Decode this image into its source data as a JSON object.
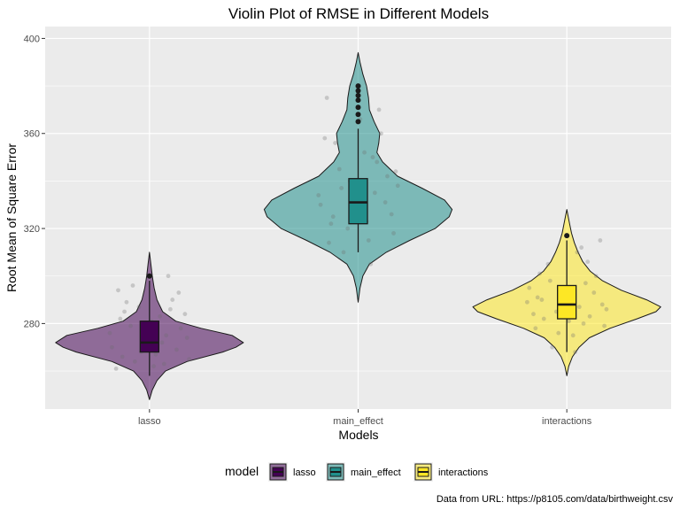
{
  "chart_data": {
    "type": "violin",
    "title": "Violin Plot of RMSE in Different Models",
    "xlabel": "Models",
    "ylabel": "Root Mean of Square Error",
    "categories": [
      "lasso",
      "main_effect",
      "interactions"
    ],
    "ylim": [
      244,
      405
    ],
    "yticks": [
      280,
      320,
      360,
      400
    ],
    "grid": true,
    "legend": {
      "title": "model",
      "position": "bottom"
    },
    "caption": "Data from URL: https://p8105.com/data/birthweight.csv",
    "series": [
      {
        "name": "lasso",
        "color": "#440154",
        "range": [
          248,
          310
        ],
        "box": {
          "min": 258,
          "q1": 268,
          "median": 272,
          "q3": 281,
          "max": 298
        },
        "outliers": [
          300
        ],
        "density": [
          [
            248,
            0.0
          ],
          [
            252,
            0.03
          ],
          [
            256,
            0.08
          ],
          [
            260,
            0.17
          ],
          [
            264,
            0.4
          ],
          [
            268,
            0.78
          ],
          [
            270,
            0.92
          ],
          [
            272,
            1.0
          ],
          [
            275,
            0.88
          ],
          [
            278,
            0.55
          ],
          [
            281,
            0.28
          ],
          [
            285,
            0.14
          ],
          [
            290,
            0.08
          ],
          [
            295,
            0.05
          ],
          [
            300,
            0.03
          ],
          [
            305,
            0.015
          ],
          [
            310,
            0.0
          ]
        ]
      },
      {
        "name": "main_effect",
        "color": "#21908C",
        "range": [
          289,
          394
        ],
        "box": {
          "min": 310,
          "q1": 322,
          "median": 331,
          "q3": 341,
          "max": 362
        },
        "outliers": [
          365,
          368,
          371,
          374,
          376,
          378,
          380
        ],
        "density": [
          [
            289,
            0.0
          ],
          [
            295,
            0.02
          ],
          [
            300,
            0.05
          ],
          [
            305,
            0.12
          ],
          [
            310,
            0.3
          ],
          [
            315,
            0.55
          ],
          [
            320,
            0.82
          ],
          [
            325,
            0.97
          ],
          [
            328,
            1.0
          ],
          [
            332,
            0.92
          ],
          [
            337,
            0.68
          ],
          [
            342,
            0.42
          ],
          [
            348,
            0.26
          ],
          [
            352,
            0.2
          ],
          [
            356,
            0.22
          ],
          [
            360,
            0.23
          ],
          [
            365,
            0.17
          ],
          [
            370,
            0.12
          ],
          [
            375,
            0.11
          ],
          [
            380,
            0.09
          ],
          [
            385,
            0.05
          ],
          [
            390,
            0.02
          ],
          [
            394,
            0.0
          ]
        ]
      },
      {
        "name": "interactions",
        "color": "#FDE725",
        "range": [
          258,
          328
        ],
        "box": {
          "min": 268,
          "q1": 282,
          "median": 288,
          "q3": 296,
          "max": 315
        },
        "outliers": [
          317
        ],
        "density": [
          [
            258,
            0.0
          ],
          [
            262,
            0.02
          ],
          [
            266,
            0.06
          ],
          [
            270,
            0.13
          ],
          [
            274,
            0.24
          ],
          [
            278,
            0.46
          ],
          [
            282,
            0.75
          ],
          [
            285,
            0.95
          ],
          [
            287,
            1.0
          ],
          [
            290,
            0.85
          ],
          [
            294,
            0.58
          ],
          [
            298,
            0.38
          ],
          [
            302,
            0.25
          ],
          [
            306,
            0.17
          ],
          [
            310,
            0.12
          ],
          [
            314,
            0.08
          ],
          [
            318,
            0.05
          ],
          [
            322,
            0.03
          ],
          [
            326,
            0.01
          ],
          [
            328,
            0.0
          ]
        ]
      }
    ],
    "jitter": [
      {
        "model": "lasso",
        "x": -0.12,
        "y": 285
      },
      {
        "model": "lasso",
        "x": 0.08,
        "y": 275
      },
      {
        "model": "lasso",
        "x": -0.04,
        "y": 268
      },
      {
        "model": "lasso",
        "x": 0.15,
        "y": 278
      },
      {
        "model": "lasso",
        "x": -0.18,
        "y": 270
      },
      {
        "model": "lasso",
        "x": 0.02,
        "y": 262
      },
      {
        "model": "lasso",
        "x": 0.19,
        "y": 265
      },
      {
        "model": "lasso",
        "x": -0.09,
        "y": 279
      },
      {
        "model": "lasso",
        "x": 0.11,
        "y": 290
      },
      {
        "model": "lasso",
        "x": -0.15,
        "y": 294
      },
      {
        "model": "lasso",
        "x": 0.05,
        "y": 283
      },
      {
        "model": "lasso",
        "x": -0.02,
        "y": 273
      },
      {
        "model": "lasso",
        "x": 0.13,
        "y": 269
      },
      {
        "model": "lasso",
        "x": -0.07,
        "y": 264
      },
      {
        "model": "lasso",
        "x": 0.09,
        "y": 300
      },
      {
        "model": "lasso",
        "x": -0.11,
        "y": 289
      },
      {
        "model": "lasso",
        "x": 0.17,
        "y": 284
      },
      {
        "model": "lasso",
        "x": -0.19,
        "y": 276
      },
      {
        "model": "lasso",
        "x": 0.01,
        "y": 281
      },
      {
        "model": "lasso",
        "x": -0.13,
        "y": 266
      },
      {
        "model": "lasso",
        "x": 0.06,
        "y": 272
      },
      {
        "model": "lasso",
        "x": -0.05,
        "y": 287
      },
      {
        "model": "lasso",
        "x": 0.14,
        "y": 293
      },
      {
        "model": "lasso",
        "x": -0.16,
        "y": 261
      },
      {
        "model": "lasso",
        "x": 0.18,
        "y": 274
      },
      {
        "model": "lasso",
        "x": -0.08,
        "y": 296
      },
      {
        "model": "lasso",
        "x": 0.03,
        "y": 267
      },
      {
        "model": "lasso",
        "x": 0.1,
        "y": 286
      },
      {
        "model": "lasso",
        "x": -0.14,
        "y": 282
      },
      {
        "model": "lasso",
        "x": 0.07,
        "y": 263
      },
      {
        "model": "main_effect",
        "x": -0.12,
        "y": 325
      },
      {
        "model": "main_effect",
        "x": 0.08,
        "y": 335
      },
      {
        "model": "main_effect",
        "x": -0.05,
        "y": 320
      },
      {
        "model": "main_effect",
        "x": 0.14,
        "y": 342
      },
      {
        "model": "main_effect",
        "x": -0.18,
        "y": 330
      },
      {
        "model": "main_effect",
        "x": 0.03,
        "y": 352
      },
      {
        "model": "main_effect",
        "x": 0.17,
        "y": 318
      },
      {
        "model": "main_effect",
        "x": -0.09,
        "y": 345
      },
      {
        "model": "main_effect",
        "x": 0.11,
        "y": 360
      },
      {
        "model": "main_effect",
        "x": -0.15,
        "y": 375
      },
      {
        "model": "main_effect",
        "x": 0.05,
        "y": 315
      },
      {
        "model": "main_effect",
        "x": -0.02,
        "y": 328
      },
      {
        "model": "main_effect",
        "x": 0.19,
        "y": 338
      },
      {
        "model": "main_effect",
        "x": -0.07,
        "y": 310
      },
      {
        "model": "main_effect",
        "x": 0.09,
        "y": 348
      },
      {
        "model": "main_effect",
        "x": -0.11,
        "y": 356
      },
      {
        "model": "main_effect",
        "x": 0.16,
        "y": 326
      },
      {
        "model": "main_effect",
        "x": -0.19,
        "y": 334
      },
      {
        "model": "main_effect",
        "x": 0.01,
        "y": 366
      },
      {
        "model": "main_effect",
        "x": -0.13,
        "y": 322
      },
      {
        "model": "main_effect",
        "x": 0.06,
        "y": 305
      },
      {
        "model": "main_effect",
        "x": -0.04,
        "y": 340
      },
      {
        "model": "main_effect",
        "x": 0.13,
        "y": 331
      },
      {
        "model": "main_effect",
        "x": -0.16,
        "y": 358
      },
      {
        "model": "main_effect",
        "x": 0.18,
        "y": 344
      },
      {
        "model": "main_effect",
        "x": -0.08,
        "y": 337
      },
      {
        "model": "main_effect",
        "x": 0.04,
        "y": 323
      },
      {
        "model": "main_effect",
        "x": 0.1,
        "y": 370
      },
      {
        "model": "main_effect",
        "x": -0.14,
        "y": 314
      },
      {
        "model": "main_effect",
        "x": 0.07,
        "y": 350
      },
      {
        "model": "interactions",
        "x": -0.12,
        "y": 290
      },
      {
        "model": "interactions",
        "x": 0.08,
        "y": 280
      },
      {
        "model": "interactions",
        "x": -0.05,
        "y": 285
      },
      {
        "model": "interactions",
        "x": 0.14,
        "y": 300
      },
      {
        "model": "interactions",
        "x": -0.18,
        "y": 295
      },
      {
        "model": "interactions",
        "x": 0.03,
        "y": 275
      },
      {
        "model": "interactions",
        "x": 0.17,
        "y": 288
      },
      {
        "model": "interactions",
        "x": -0.09,
        "y": 305
      },
      {
        "model": "interactions",
        "x": 0.11,
        "y": 283
      },
      {
        "model": "interactions",
        "x": -0.15,
        "y": 278
      },
      {
        "model": "interactions",
        "x": 0.05,
        "y": 310
      },
      {
        "model": "interactions",
        "x": -0.02,
        "y": 292
      },
      {
        "model": "interactions",
        "x": 0.19,
        "y": 286
      },
      {
        "model": "interactions",
        "x": -0.07,
        "y": 270
      },
      {
        "model": "interactions",
        "x": 0.09,
        "y": 297
      },
      {
        "model": "interactions",
        "x": -0.11,
        "y": 282
      },
      {
        "model": "interactions",
        "x": 0.16,
        "y": 315
      },
      {
        "model": "interactions",
        "x": -0.19,
        "y": 289
      },
      {
        "model": "interactions",
        "x": 0.01,
        "y": 281
      },
      {
        "model": "interactions",
        "x": -0.13,
        "y": 301
      },
      {
        "model": "interactions",
        "x": 0.06,
        "y": 287
      },
      {
        "model": "interactions",
        "x": -0.04,
        "y": 276
      },
      {
        "model": "interactions",
        "x": 0.13,
        "y": 293
      },
      {
        "model": "interactions",
        "x": -0.16,
        "y": 284
      },
      {
        "model": "interactions",
        "x": 0.18,
        "y": 279
      },
      {
        "model": "interactions",
        "x": -0.08,
        "y": 298
      },
      {
        "model": "interactions",
        "x": 0.04,
        "y": 268
      },
      {
        "model": "interactions",
        "x": 0.1,
        "y": 306
      },
      {
        "model": "interactions",
        "x": -0.14,
        "y": 291
      },
      {
        "model": "interactions",
        "x": 0.07,
        "y": 312
      }
    ]
  }
}
